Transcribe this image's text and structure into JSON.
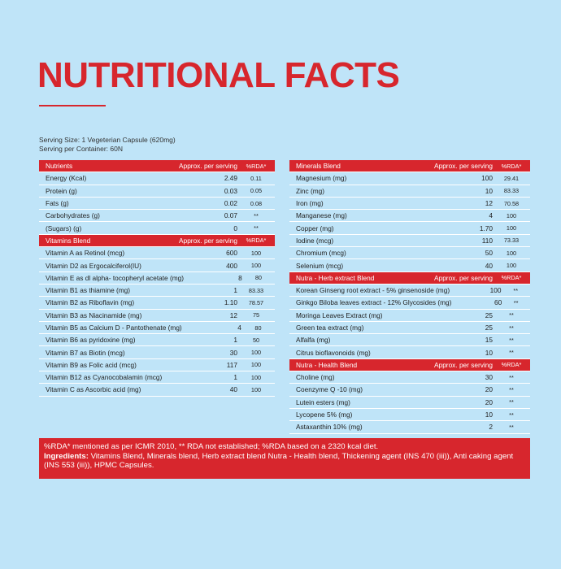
{
  "header": {
    "title": "NUTRITIONAL FACTS",
    "serving_size": "Serving Size: 1 Vegeterian Capsule (620mg)",
    "serving_per_container": "Serving per Container: 60N"
  },
  "columns": [
    {
      "sections": [
        {
          "header": [
            "Nutrients",
            "Approx. per serving",
            "%RDA*"
          ],
          "rows": [
            [
              "Energy (Kcal)",
              "2.49",
              "0.11"
            ],
            [
              "Protein (g)",
              "0.03",
              "0.05"
            ],
            [
              "Fats (g)",
              "0.02",
              "0.08"
            ],
            [
              "Carbohydrates (g)",
              "0.07",
              "**"
            ],
            [
              "(Sugars) (g)",
              "0",
              "**"
            ]
          ]
        },
        {
          "header": [
            "Vitamins Blend",
            "Approx. per serving",
            "%RDA*"
          ],
          "rows": [
            [
              "Vitamin A as Retinol (mcg)",
              "600",
              "100"
            ],
            [
              "Vitamin D2 as Ergocalciferol(IU)",
              "400",
              "100"
            ],
            [
              "Vitamin E as dl alpha- tocopheryl acetate (mg)",
              "8",
              "80"
            ],
            [
              "Vitamin B1 as thiamine (mg)",
              "1",
              "83.33"
            ],
            [
              "Vitamin B2 as Riboflavin (mg)",
              "1.10",
              "78.57"
            ],
            [
              "Vitamin B3 as Niacinamide (mg)",
              "12",
              "75"
            ],
            [
              "Vitamin B5 as Calcium D - Pantothenate (mg)",
              "4",
              "80"
            ],
            [
              "Vitamin B6 as pyridoxine (mg)",
              "1",
              "50"
            ],
            [
              "Vitamin B7 as Biotin (mcg)",
              "30",
              "100"
            ],
            [
              "Vitamin B9 as Folic acid (mcg)",
              "117",
              "100"
            ],
            [
              "Vitamin B12 as Cyanocobalamin (mcg)",
              "1",
              "100"
            ],
            [
              "Vitamin C as Ascorbic acid (mg)",
              "40",
              "100"
            ]
          ]
        }
      ]
    },
    {
      "sections": [
        {
          "header": [
            "Minerals Blend",
            "Approx. per serving",
            "%RDA*"
          ],
          "rows": [
            [
              "Magnesium (mg)",
              "100",
              "29.41"
            ],
            [
              "Zinc (mg)",
              "10",
              "83.33"
            ],
            [
              "Iron (mg)",
              "12",
              "70.58"
            ],
            [
              "Manganese (mg)",
              "4",
              "100"
            ],
            [
              "Copper (mg)",
              "1.70",
              "100"
            ],
            [
              "Iodine (mcg)",
              "110",
              "73.33"
            ],
            [
              "Chromium (mcg)",
              "50",
              "100"
            ],
            [
              "Selenium (mcg)",
              "40",
              "100"
            ]
          ]
        },
        {
          "header": [
            "Nutra - Herb extract Blend",
            "Approx. per serving",
            "%RDA*"
          ],
          "rows": [
            [
              "Korean Ginseng root extract - 5% ginsenoside (mg)",
              "100",
              "**"
            ],
            [
              "Ginkgo Biloba leaves extract - 12% Glycosides (mg)",
              "60",
              "**"
            ],
            [
              "Moringa Leaves Extract (mg)",
              "25",
              "**"
            ],
            [
              "Green tea extract (mg)",
              "25",
              "**"
            ],
            [
              "Alfalfa (mg)",
              "15",
              "**"
            ],
            [
              "Citrus bioflavonoids (mg)",
              "10",
              "**"
            ]
          ]
        },
        {
          "header": [
            "Nutra - Health Blend",
            "Approx. per serving",
            "%RDA*"
          ],
          "rows": [
            [
              "Choline (mg)",
              "30",
              "**"
            ],
            [
              "Coenzyme Q -10 (mg)",
              "20",
              "**"
            ],
            [
              "Lutein esters (mg)",
              "20",
              "**"
            ],
            [
              "Lycopene 5% (mg)",
              "10",
              "**"
            ],
            [
              "Astaxanthin 10% (mg)",
              "2",
              "**"
            ]
          ]
        }
      ]
    }
  ],
  "footer": {
    "note": "%RDA* mentioned as per ICMR 2010, ** RDA not established; %RDA based on a 2320 kcal diet.",
    "ingredients_label": "Ingredients:",
    "ingredients": " Vitamins Blend, Minerals blend, Herb extract blend Nutra - Health blend, Thickening agent (INS 470 (iii)), Anti caking agent (INS 553 (iii)), HPMC Capsules."
  }
}
